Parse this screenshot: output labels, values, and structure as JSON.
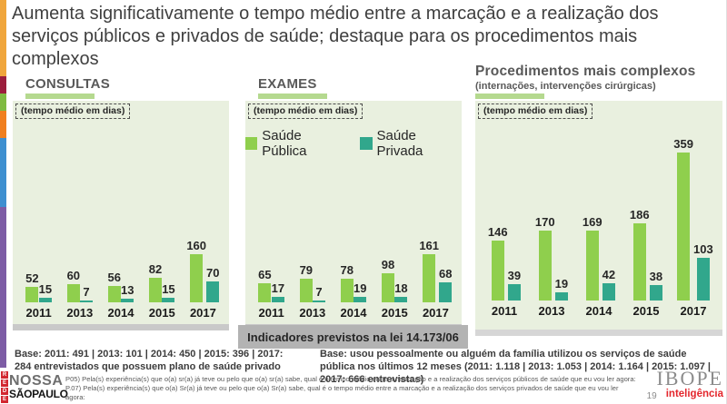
{
  "slide": {
    "title": "Aumenta significativamente o tempo médio entre a marcação e a realização dos serviços públicos e privados de saúde; destaque para os procedimentos mais complexos"
  },
  "legend": {
    "items": [
      {
        "label": "Saúde Pública",
        "color": "#8fcf4d"
      },
      {
        "label": "Saúde Privada",
        "color": "#31a78c"
      }
    ]
  },
  "chart_data": [
    {
      "type": "bar",
      "title": "CONSULTAS",
      "note": "(tempo médio em dias)",
      "ylabel": "tempo médio em dias",
      "categories": [
        "2011",
        "2013",
        "2014",
        "2015",
        "2017"
      ],
      "series": [
        {
          "name": "Saúde Pública",
          "color": "#8fcf4d",
          "values": [
            52,
            60,
            56,
            82,
            160
          ]
        },
        {
          "name": "Saúde Privada",
          "color": "#31a78c",
          "values": [
            15,
            7,
            13,
            15,
            70
          ]
        }
      ],
      "legend_position": "none",
      "grid": false
    },
    {
      "type": "bar",
      "title": "EXAMES",
      "note": "(tempo médio em dias)",
      "ylabel": "tempo médio em dias",
      "categories": [
        "2011",
        "2013",
        "2014",
        "2015",
        "2017"
      ],
      "series": [
        {
          "name": "Saúde Pública",
          "color": "#8fcf4d",
          "values": [
            65,
            79,
            78,
            98,
            161
          ]
        },
        {
          "name": "Saúde Privada",
          "color": "#31a78c",
          "values": [
            17,
            7,
            19,
            18,
            68
          ]
        }
      ],
      "legend_position": "top",
      "grid": false
    },
    {
      "type": "bar",
      "title": "Procedimentos mais complexos",
      "subtitle": "(internações, intervenções cirúrgicas)",
      "note": "(tempo médio em dias)",
      "ylabel": "tempo médio em dias",
      "categories": [
        "2011",
        "2013",
        "2014",
        "2015",
        "2017"
      ],
      "series": [
        {
          "name": "Saúde Pública",
          "color": "#8fcf4d",
          "values": [
            146,
            170,
            169,
            186,
            359
          ]
        },
        {
          "name": "Saúde Privada",
          "color": "#31a78c",
          "values": [
            39,
            19,
            42,
            38,
            103
          ]
        }
      ],
      "legend_position": "none",
      "grid": false
    }
  ],
  "callout": {
    "text": "Indicadores previstos na lei 14.173/06"
  },
  "notes": {
    "base_privado": "Base: 2011: 491 | 2013: 101 | 2014: 450 | 2015: 396 | 2017: 284 entrevistados que possuem plano de saúde privado",
    "base_publico": "Base: usou pessoalmente ou alguém da família utilizou os serviços de saúde pública nos últimos 12 meses  (2011: 1.118 | 2013: 1.053 | 2014: 1.164  | 2015: 1.097 | 2017: 666 entrevistas)"
  },
  "footer": {
    "question_text": "P05) Pela(s) experiência(s) que o(a) sr(a) já teve ou pelo que o(a) sr(a) sabe, qual é o tempo médio entre a marcação e a realização dos serviços públicos de saúde que eu vou ler agora: P.07) Pela(s) experiência(s) que o(a) Sr(a) já teve ou pelo que o(a) Sr(a) sabe, qual é o tempo médio entre a marcação e a realização dos serviços privados de saúde que eu vou ler agora:",
    "rede_logo": {
      "vertical": "REDE",
      "line1": "NOSSA",
      "line2": "SÃOPAULO"
    },
    "ibope_logo": {
      "name": "IBOPE",
      "tagline": "inteligência"
    },
    "page_number": "19"
  },
  "colors": {
    "publica": "#8fcf4d",
    "privada": "#31a78c",
    "panel_bg": "#e9f0df",
    "underline": "#b5d98f",
    "callout_bg": "#b3b3b3",
    "stripe": [
      "#f0a63c",
      "#9c1e3d",
      "#7fba42",
      "#f07f1f",
      "#3e8fd0",
      "#7d5ca5"
    ]
  }
}
